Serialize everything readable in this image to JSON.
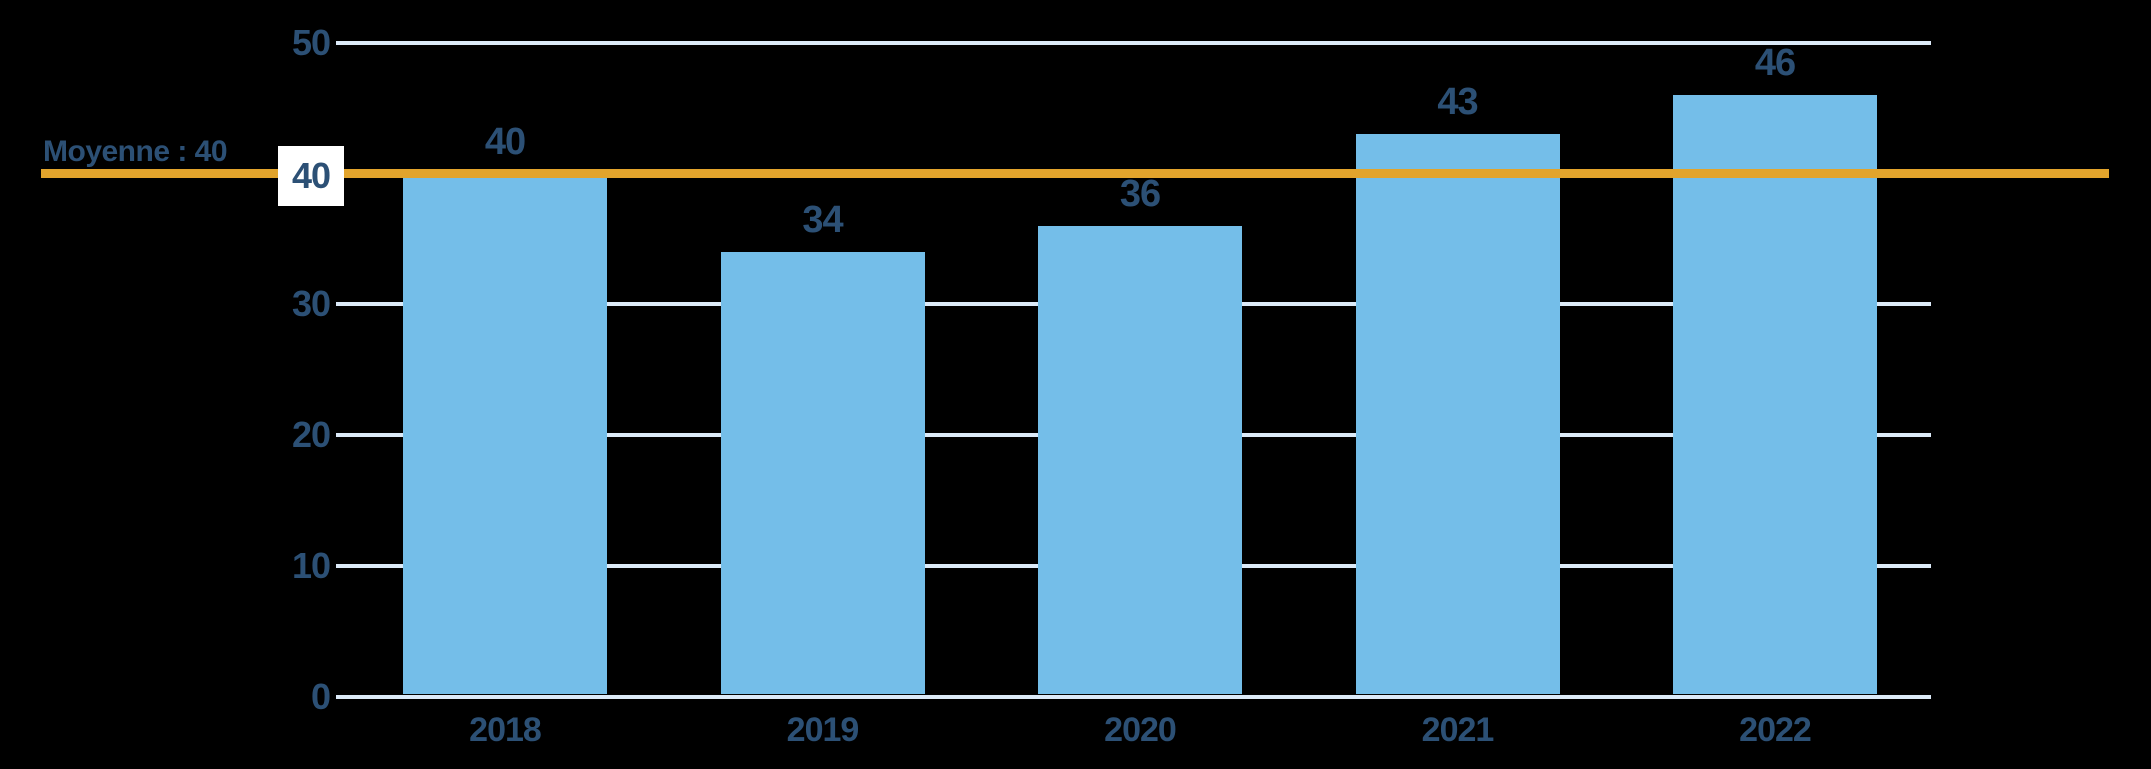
{
  "chart_data": {
    "type": "bar",
    "title": "",
    "xlabel": "",
    "ylabel": "",
    "categories": [
      "2018",
      "2019",
      "2020",
      "2021",
      "2022"
    ],
    "values": [
      40,
      34,
      36,
      43,
      46
    ],
    "ylim": [
      0,
      50
    ],
    "yticks": [
      0,
      10,
      20,
      30,
      40,
      50
    ],
    "grid": "horizontal",
    "legend": "none",
    "average_line": {
      "value": 40,
      "label": "Moyenne : 40",
      "tick_label": "40"
    },
    "colors": {
      "bar": "#74BEE9",
      "average_line": "#E2A42C",
      "text": "#2C5075",
      "gridline": "#DCEAF8",
      "tick_box_background": "#FFFFFF",
      "background": "#000000"
    }
  }
}
